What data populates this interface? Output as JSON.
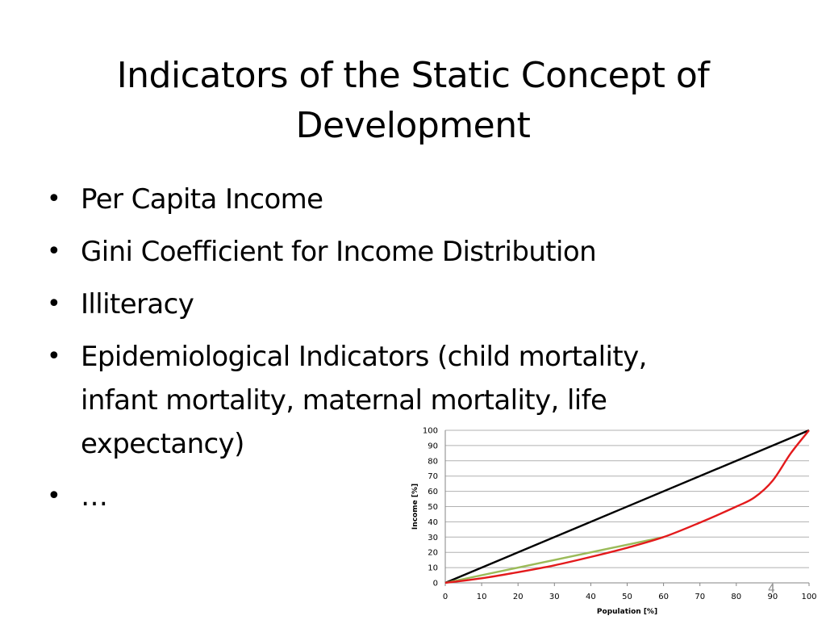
{
  "slide": {
    "title": "Indicators of the Static Concept of Development",
    "bullets": [
      "Per Capita Income",
      "Gini Coefficient for Income Distribution",
      "Illiteracy",
      "Epidemiological Indicators (child mortality, infant mortality, maternal mortality, life expectancy)",
      "…"
    ],
    "slide_number": "4"
  },
  "chart_data": {
    "type": "line",
    "title": "",
    "xlabel": "Population  [%]",
    "ylabel": "Income  [%]",
    "xlim": [
      0,
      100
    ],
    "ylim": [
      0,
      100
    ],
    "x_ticks": [
      "0",
      "10",
      "20",
      "30",
      "40",
      "50",
      "60",
      "70",
      "80",
      "90",
      "100"
    ],
    "y_ticks": [
      "0",
      "10",
      "20",
      "30",
      "40",
      "50",
      "60",
      "70",
      "80",
      "90",
      "100"
    ],
    "grid": "horizontal",
    "legend": "none",
    "series": [
      {
        "color": "#000000",
        "x": [
          0,
          100
        ],
        "y": [
          0,
          100
        ]
      },
      {
        "color": "#9bbb59",
        "x": [
          0,
          60
        ],
        "y": [
          0,
          30
        ]
      },
      {
        "color": "#e31a1c",
        "x": [
          0,
          10,
          20,
          30,
          40,
          50,
          60,
          70,
          80,
          85,
          90,
          95,
          100
        ],
        "y": [
          0,
          3,
          7,
          11.5,
          17,
          23,
          30,
          39.5,
          50,
          56,
          67,
          85,
          100
        ]
      }
    ]
  }
}
